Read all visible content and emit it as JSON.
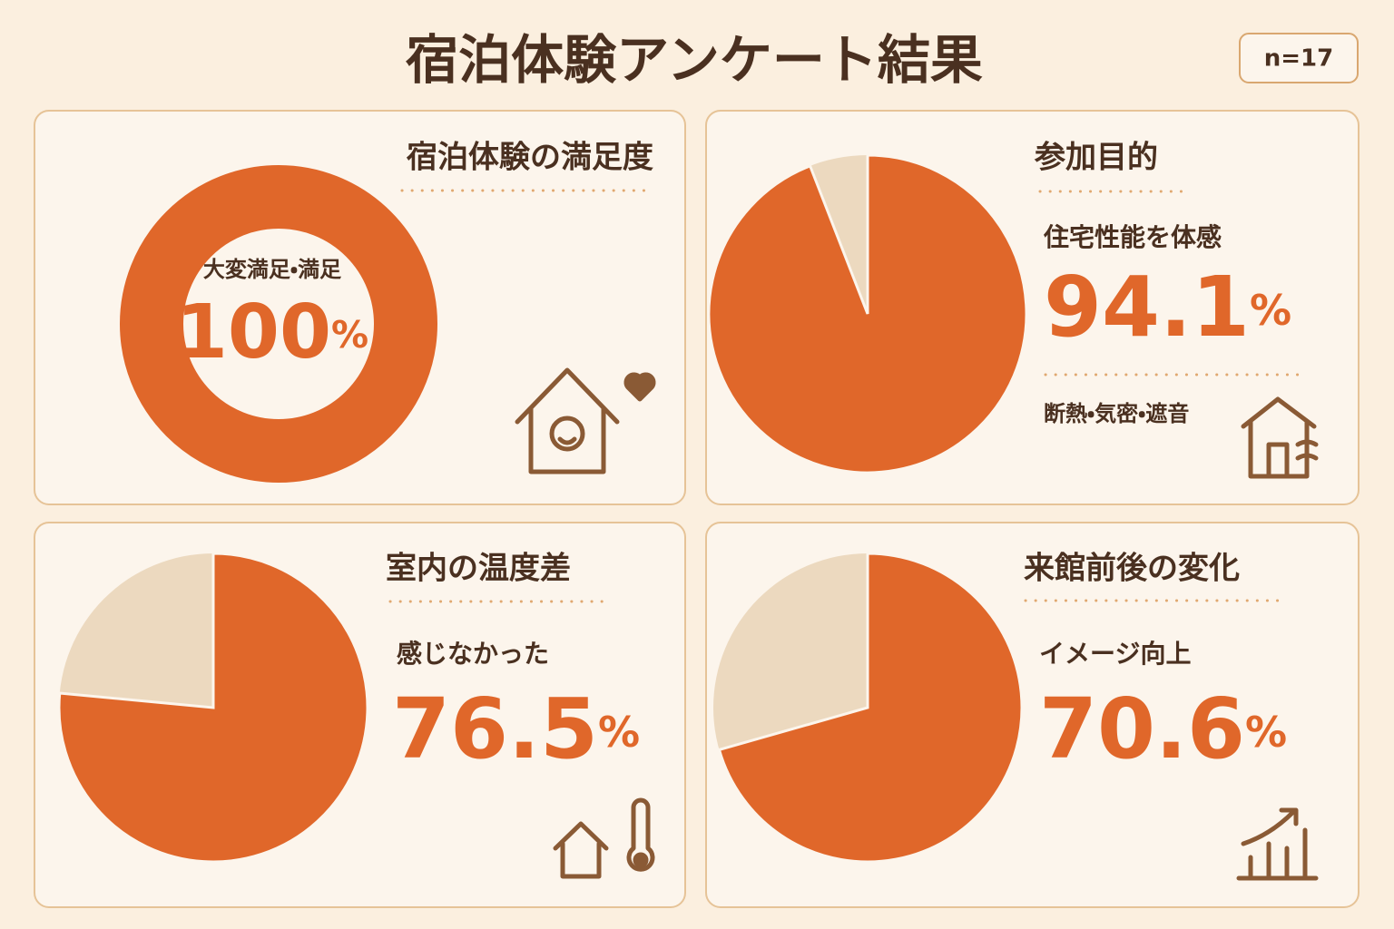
{
  "title": "宿泊体験アンケート結果",
  "badge": "n=17",
  "chart_data": [
    {
      "type": "donut",
      "title": "宿泊体験の満足度",
      "label": "大変満足・満足",
      "values": [
        100
      ],
      "unit": "%",
      "color": "#e0672a"
    },
    {
      "type": "pie",
      "title": "参加目的",
      "label": "住宅性能を体感",
      "values": [
        94.1
      ],
      "unit": "%",
      "note": "断熱・気密・遮音",
      "color": "#e0672a",
      "rest_color": "#ecd9bf"
    },
    {
      "type": "pie",
      "title": "室内の温度差",
      "label": "感じなかった",
      "values": [
        76.5
      ],
      "unit": "%",
      "color": "#e0672a",
      "rest_color": "#ecd9bf"
    },
    {
      "type": "pie",
      "title": "来館前後の変化",
      "label": "イメージ向上",
      "values": [
        70.6
      ],
      "unit": "%",
      "color": "#e0672a",
      "rest_color": "#ecd9bf"
    }
  ]
}
